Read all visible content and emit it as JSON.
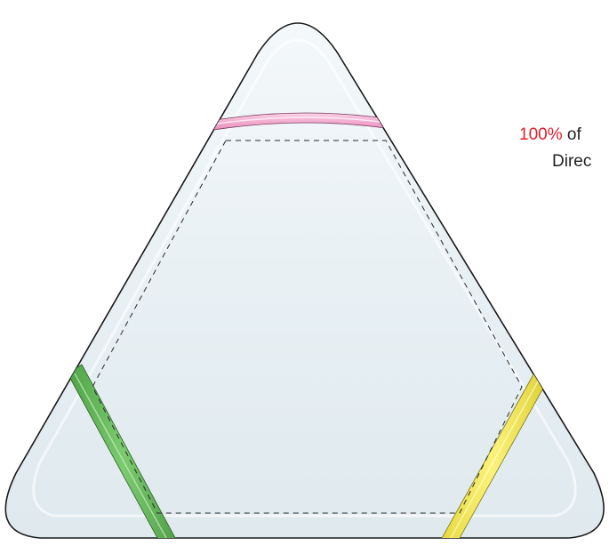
{
  "product": {
    "name": "triangle-highlighter",
    "body_color": "#eaf2f6",
    "band_colors": {
      "top": "#f3a9cf",
      "left": "#66bb5c",
      "right": "#f2e84a"
    }
  },
  "note": {
    "percent": "100%",
    "line1_rest": " of",
    "line2": "Direc",
    "percent_color": "#e3212b"
  }
}
